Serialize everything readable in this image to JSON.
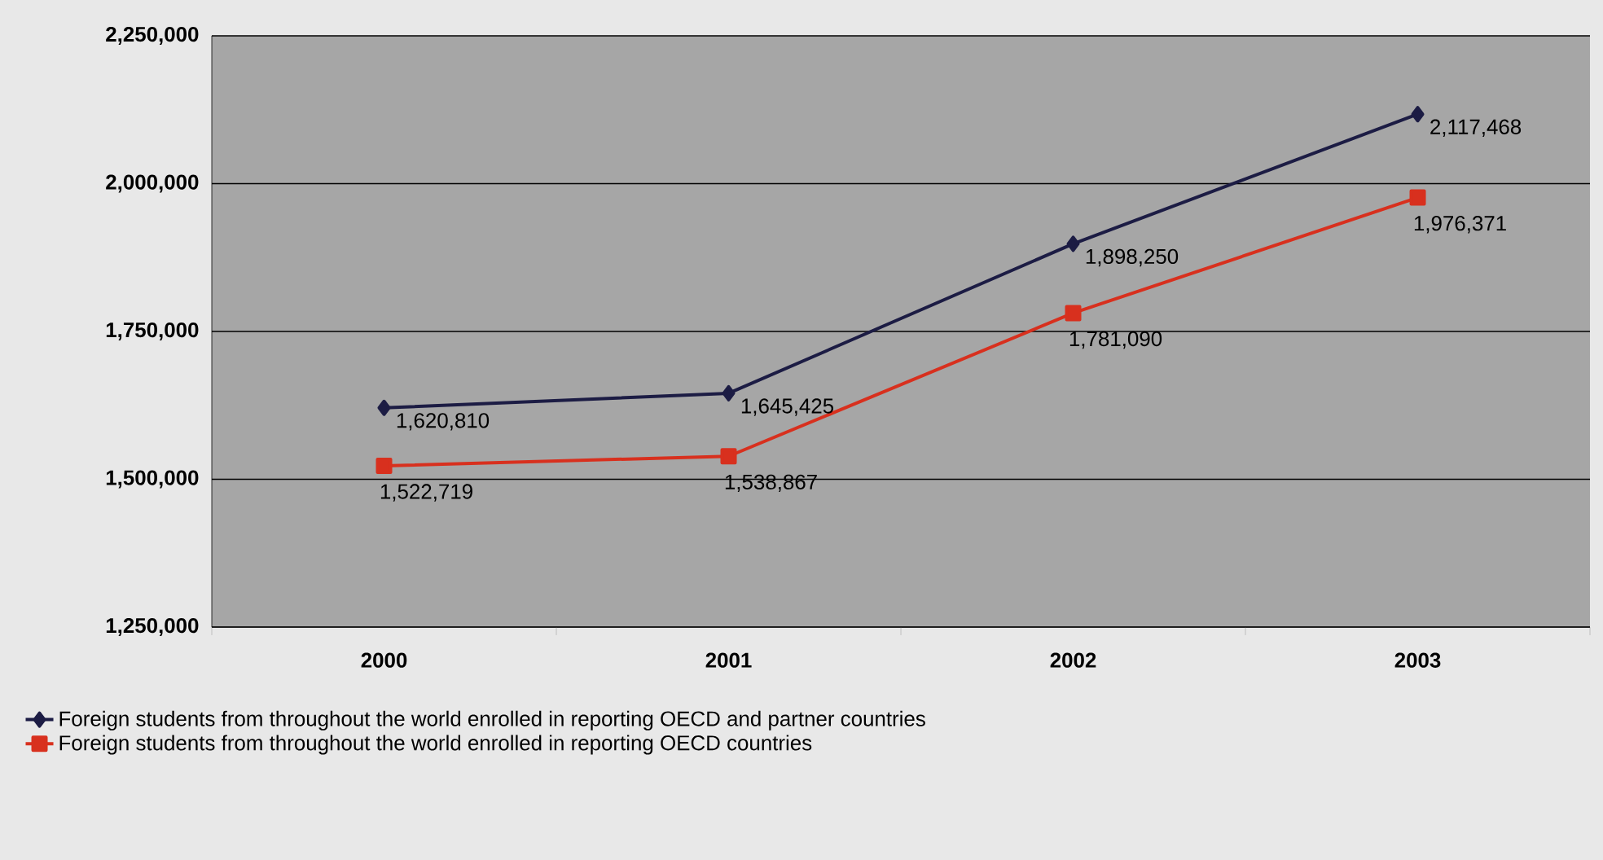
{
  "chart_data": {
    "type": "line",
    "categories": [
      "2000",
      "2001",
      "2002",
      "2003"
    ],
    "series": [
      {
        "name": "Foreign students from throughout the world enrolled in reporting OECD and partner countries",
        "color": "#1c1c44",
        "marker": "diamond",
        "values": [
          1620810,
          1645425,
          1898250,
          2117468
        ],
        "value_labels": [
          "1,620,810",
          "1,645,425",
          "1,898,250",
          "2,117,468"
        ]
      },
      {
        "name": "Foreign students from throughout the world enrolled in reporting OECD countries",
        "color": "#d8301e",
        "marker": "square",
        "values": [
          1522719,
          1538867,
          1781090,
          1976371
        ],
        "value_labels": [
          "1,522,719",
          "1,538,867",
          "1,781,090",
          "1,976,371"
        ]
      }
    ],
    "ylim": [
      1250000,
      2250000
    ],
    "yticks": [
      {
        "value": 1250000,
        "label": "1,250,000"
      },
      {
        "value": 1500000,
        "label": "1,500,000"
      },
      {
        "value": 1750000,
        "label": "1,750,000"
      },
      {
        "value": 2000000,
        "label": "2,000,000"
      },
      {
        "value": 2250000,
        "label": "2,250,000"
      }
    ],
    "grid": "y",
    "legend": "bottom"
  }
}
